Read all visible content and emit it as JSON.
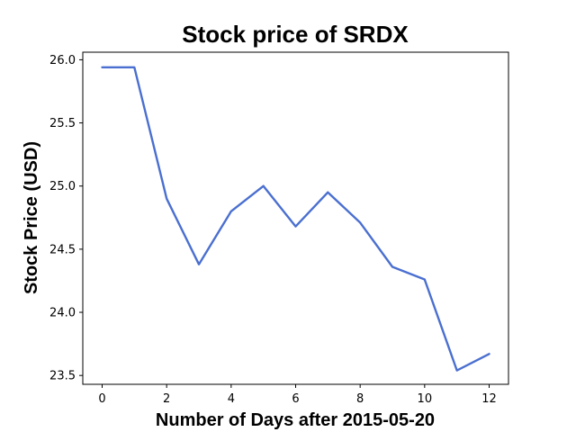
{
  "chart_data": {
    "type": "line",
    "title": "Stock price of SRDX",
    "xlabel": "Number of Days after 2015-05-20",
    "ylabel": "Stock Price (USD)",
    "x": [
      0,
      1,
      2,
      3,
      4,
      5,
      6,
      7,
      8,
      9,
      10,
      11,
      12
    ],
    "series": [
      {
        "values": [
          25.94,
          25.94,
          24.9,
          24.38,
          24.8,
          25.0,
          24.68,
          24.95,
          24.71,
          24.36,
          24.26,
          23.54,
          23.67
        ],
        "color": "#4a6fd0"
      }
    ],
    "xlim": [
      -0.6,
      12.6
    ],
    "ylim": [
      23.43,
      26.06
    ],
    "xticks": [
      0,
      2,
      4,
      6,
      8,
      10,
      12
    ],
    "xtick_labels": [
      "0",
      "2",
      "4",
      "6",
      "8",
      "10",
      "12"
    ],
    "yticks": [
      23.5,
      24.0,
      24.5,
      25.0,
      25.5,
      26.0
    ],
    "ytick_labels": [
      "23.5",
      "24.0",
      "24.5",
      "25.0",
      "25.5",
      "26.0"
    ],
    "grid": false
  }
}
